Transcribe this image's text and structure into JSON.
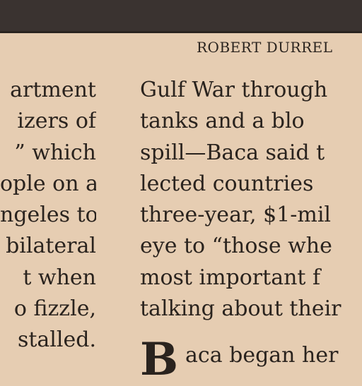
{
  "byline": "ROBERT DURREL",
  "left_column": {
    "lines": [
      "artment",
      "izers  of",
      "” which",
      "ople on a",
      "ngeles to",
      "bilateral",
      "t  when",
      "o  fizzle,",
      "stalled."
    ]
  },
  "right_column": {
    "lines": [
      "Gulf War through",
      "tanks  and  a  blo",
      "spill—Baca said t",
      "lected  countries",
      "three-year, $1-mil",
      "eye to “those whe",
      "most  important  f",
      "talking about their"
    ]
  },
  "next_paragraph": {
    "drop_cap": "B",
    "text": "aca  began  her"
  }
}
